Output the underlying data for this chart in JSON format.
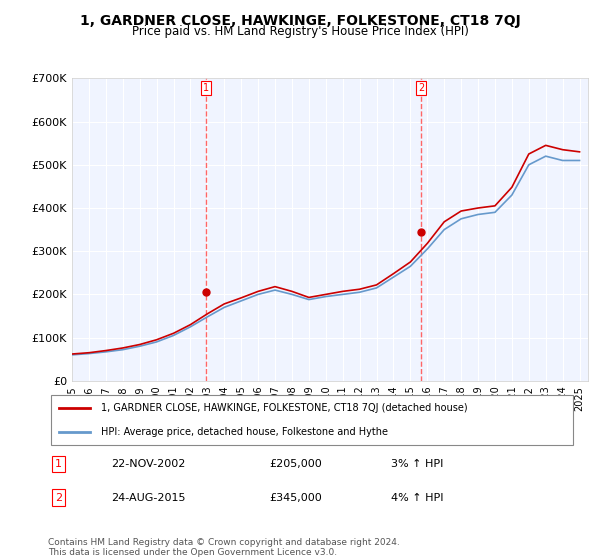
{
  "title": "1, GARDNER CLOSE, HAWKINGE, FOLKESTONE, CT18 7QJ",
  "subtitle": "Price paid vs. HM Land Registry's House Price Index (HPI)",
  "ylabel_ticks": [
    "£0",
    "£100K",
    "£200K",
    "£300K",
    "£400K",
    "£500K",
    "£600K",
    "£700K"
  ],
  "ylim": [
    0,
    700000
  ],
  "xlim_start": 1995.5,
  "xlim_end": 2025.5,
  "purchase1": {
    "date_x": 2002.9,
    "price": 205000,
    "label": "1",
    "year_str": "22-NOV-2002",
    "price_str": "£205,000",
    "hpi_str": "3% ↑ HPI"
  },
  "purchase2": {
    "date_x": 2015.65,
    "price": 345000,
    "label": "2",
    "year_str": "24-AUG-2015",
    "price_str": "£345,000",
    "hpi_str": "4% ↑ HPI"
  },
  "legend_property": "1, GARDNER CLOSE, HAWKINGE, FOLKESTONE, CT18 7QJ (detached house)",
  "legend_hpi": "HPI: Average price, detached house, Folkestone and Hythe",
  "footer": "Contains HM Land Registry data © Crown copyright and database right 2024.\nThis data is licensed under the Open Government Licence v3.0.",
  "line_color_property": "#cc0000",
  "line_color_hpi": "#6699cc",
  "background_color": "#ffffff",
  "plot_bg_color": "#f0f4ff",
  "grid_color": "#ffffff",
  "vline_color": "#ff6666",
  "years": [
    1995,
    1996,
    1997,
    1998,
    1999,
    2000,
    2001,
    2002,
    2003,
    2004,
    2005,
    2006,
    2007,
    2008,
    2009,
    2010,
    2011,
    2012,
    2013,
    2014,
    2015,
    2016,
    2017,
    2018,
    2019,
    2020,
    2021,
    2022,
    2023,
    2024,
    2025
  ],
  "hpi_values": [
    60000,
    63000,
    67000,
    72000,
    80000,
    90000,
    105000,
    125000,
    148000,
    170000,
    185000,
    200000,
    210000,
    200000,
    188000,
    195000,
    200000,
    205000,
    215000,
    240000,
    265000,
    305000,
    350000,
    375000,
    385000,
    390000,
    430000,
    500000,
    520000,
    510000,
    510000
  ],
  "property_values": [
    62000,
    65000,
    70000,
    76000,
    84000,
    95000,
    110000,
    130000,
    155000,
    178000,
    192000,
    207000,
    218000,
    207000,
    193000,
    200000,
    207000,
    212000,
    222000,
    248000,
    275000,
    318000,
    368000,
    393000,
    400000,
    405000,
    448000,
    525000,
    545000,
    535000,
    530000
  ]
}
